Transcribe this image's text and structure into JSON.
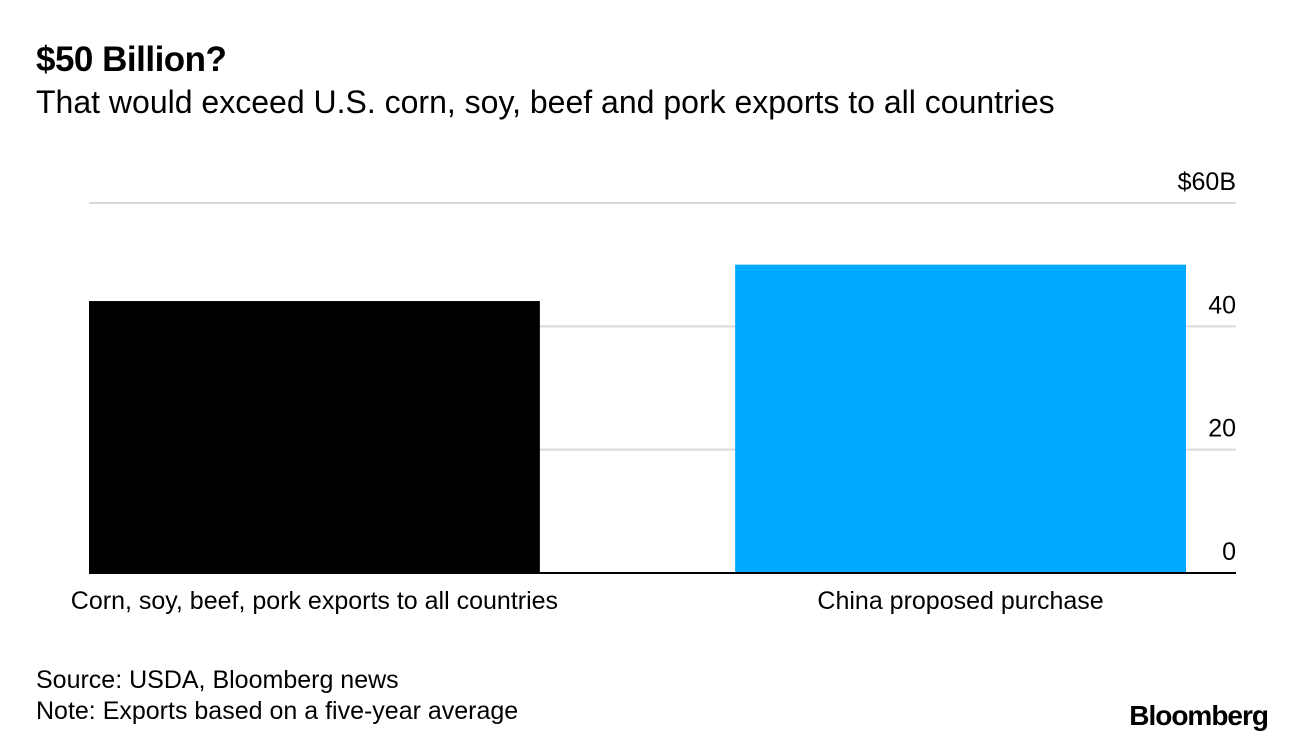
{
  "header": {
    "title": "$50 Billion?",
    "subtitle": "That would exceed U.S. corn, soy, beef and pork exports to all countries"
  },
  "chart_data": {
    "type": "bar",
    "title": "$50 Billion?",
    "subtitle": "That would exceed U.S. corn, soy, beef and pork exports to all countries",
    "categories": [
      "Corn, soy, beef, pork exports to all countries",
      "China proposed purchase"
    ],
    "values": [
      44.1,
      50
    ],
    "ylim": [
      0,
      60
    ],
    "yticks": [
      0,
      20,
      40,
      60
    ],
    "ytick_labels": [
      "0",
      "20",
      "40",
      "$60B"
    ],
    "xlabel": "",
    "ylabel": "",
    "grid": true,
    "y_axis_position": "right",
    "colors": [
      "#000000",
      "#00aaff"
    ],
    "gridline_color": "#d9d9d9",
    "axis_color": "#000000"
  },
  "footer": {
    "source": "Source: USDA, Bloomberg news",
    "note": "Note: Exports based on a five-year average"
  },
  "brand": {
    "logo_text": "Bloomberg"
  }
}
